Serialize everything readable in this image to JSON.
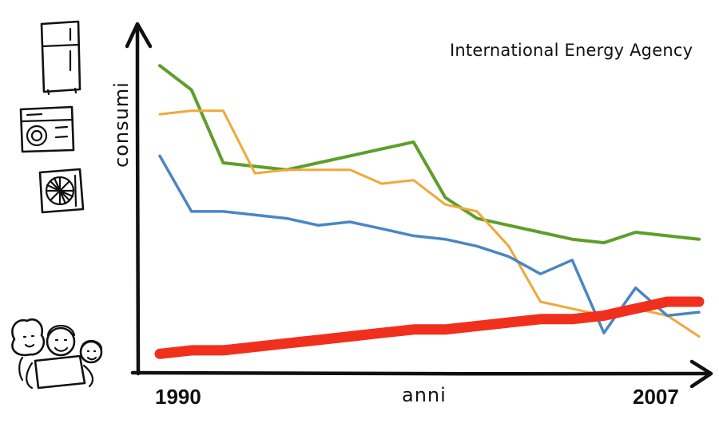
{
  "chart_data": {
    "type": "line",
    "source_note": "International Energy Agency",
    "xlabel": "anni",
    "ylabel": "consumi",
    "x_ticks": [
      "1990",
      "2007"
    ],
    "xlim": [
      1990,
      2007
    ],
    "ylim": [
      0,
      100
    ],
    "x": [
      1990,
      1991,
      1992,
      1993,
      1994,
      1995,
      1996,
      1997,
      1998,
      1999,
      2000,
      2001,
      2002,
      2003,
      2004,
      2005,
      2006,
      2007
    ],
    "series": [
      {
        "id": "green",
        "color": "#5e9e2a",
        "width": 4,
        "values": [
          88,
          81,
          60,
          59,
          58,
          60,
          62,
          64,
          66,
          50,
          44,
          42,
          40,
          38,
          37,
          40,
          39,
          38
        ]
      },
      {
        "id": "orange",
        "color": "#f0a83a",
        "width": 3,
        "values": [
          74,
          75,
          75,
          57,
          58,
          58,
          58,
          54,
          55,
          48,
          46,
          36,
          20,
          18,
          16,
          18,
          16,
          10
        ]
      },
      {
        "id": "blue",
        "color": "#4a86c3",
        "width": 3.5,
        "values": [
          62,
          46,
          46,
          45,
          44,
          42,
          43,
          41,
          39,
          38,
          36,
          33,
          28,
          32,
          11,
          24,
          16,
          17
        ]
      },
      {
        "id": "red",
        "color": "#f0301c",
        "width": 13,
        "values": [
          5,
          6,
          6,
          7,
          8,
          9,
          10,
          11,
          12,
          12,
          13,
          14,
          15,
          15,
          16,
          18,
          20,
          20
        ]
      }
    ]
  },
  "icons": {
    "appliances": [
      "refrigerator-icon",
      "washing-machine-icon",
      "air-conditioner-icon"
    ],
    "people": "family-icon"
  }
}
